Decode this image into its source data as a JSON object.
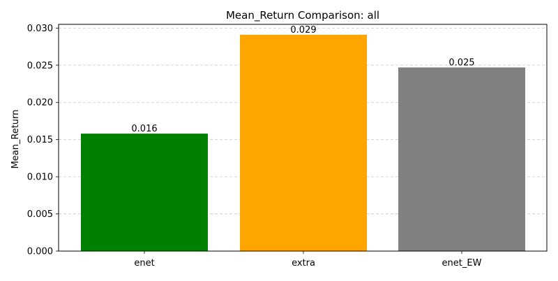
{
  "chart_data": {
    "type": "bar",
    "title": "Mean_Return Comparison: all",
    "xlabel": "",
    "ylabel": "Mean_Return",
    "categories": [
      "enet",
      "extra",
      "enet_EW"
    ],
    "values": [
      0.0158,
      0.0291,
      0.0247
    ],
    "data_labels": [
      "0.016",
      "0.029",
      "0.025"
    ],
    "colors": [
      "#008000",
      "#ffa500",
      "#808080"
    ],
    "ylim": [
      0,
      0.0305
    ],
    "yticks": [
      0,
      0.005,
      0.01,
      0.015,
      0.02,
      0.025,
      0.03
    ],
    "ytick_labels": [
      "0.000",
      "0.005",
      "0.010",
      "0.015",
      "0.020",
      "0.025",
      "0.030"
    ],
    "grid": "y-dashed",
    "legend": "none"
  }
}
